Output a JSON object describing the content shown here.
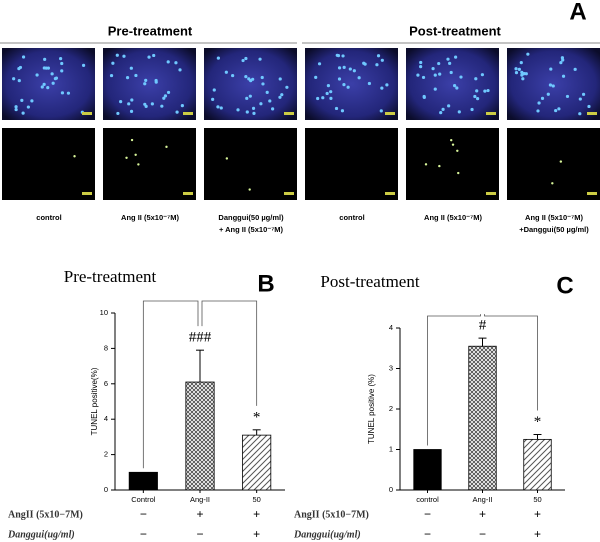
{
  "panel_a": {
    "label": "A",
    "groups": [
      "Pre-treatment",
      "Post-treatment"
    ],
    "captions": [
      [
        "control"
      ],
      [
        "Ang II (5x10⁻⁷M)"
      ],
      [
        "Danggui(50 µg/ml)",
        "+ Ang II (5x10⁻⁷M)"
      ],
      [
        "control"
      ],
      [
        "Ang II (5x10⁻⁷M)"
      ],
      [
        "Ang II (5x10⁻⁷M)",
        "+Danggui(50 µg/ml)"
      ]
    ]
  },
  "chart_data": [
    {
      "type": "bar",
      "panel": "B",
      "title": "Pre-treatment",
      "y_label": "TUNEL positive(%)",
      "categories": [
        "Control",
        "Ang-II",
        "50"
      ],
      "values": [
        1.0,
        6.1,
        3.1
      ],
      "errors": [
        0,
        1.8,
        0.3
      ],
      "patterns": [
        "solid",
        "crosshatch",
        "diagonal"
      ],
      "annotations": [
        null,
        "###",
        "*"
      ],
      "ylim": [
        0,
        10
      ],
      "yticks": [
        0,
        2,
        4,
        6,
        8,
        10
      ],
      "treatment_rows": [
        {
          "label": "AngII (5x10−7M)",
          "signs": [
            "−",
            "+",
            "+"
          ]
        },
        {
          "label": "Danggui(ug/ml)",
          "signs": [
            "−",
            "−",
            "+"
          ]
        }
      ]
    },
    {
      "type": "bar",
      "panel": "C",
      "title": "Post-treatment",
      "y_label": "TUNEL positive (%)",
      "categories": [
        "control",
        "Ang-II",
        "50"
      ],
      "values": [
        1.0,
        3.55,
        1.25
      ],
      "errors": [
        0,
        0.2,
        0.12
      ],
      "patterns": [
        "solid",
        "crosshatch",
        "diagonal"
      ],
      "annotations": [
        null,
        "#",
        "*"
      ],
      "ylim": [
        0,
        4
      ],
      "yticks": [
        0,
        1,
        2,
        3,
        4
      ],
      "treatment_rows": [
        {
          "label": "AngII (5x10−7M)",
          "signs": [
            "−",
            "+",
            "+"
          ]
        },
        {
          "label": "Danggui(ug/ml)",
          "signs": [
            "−",
            "−",
            "+"
          ]
        }
      ]
    }
  ]
}
